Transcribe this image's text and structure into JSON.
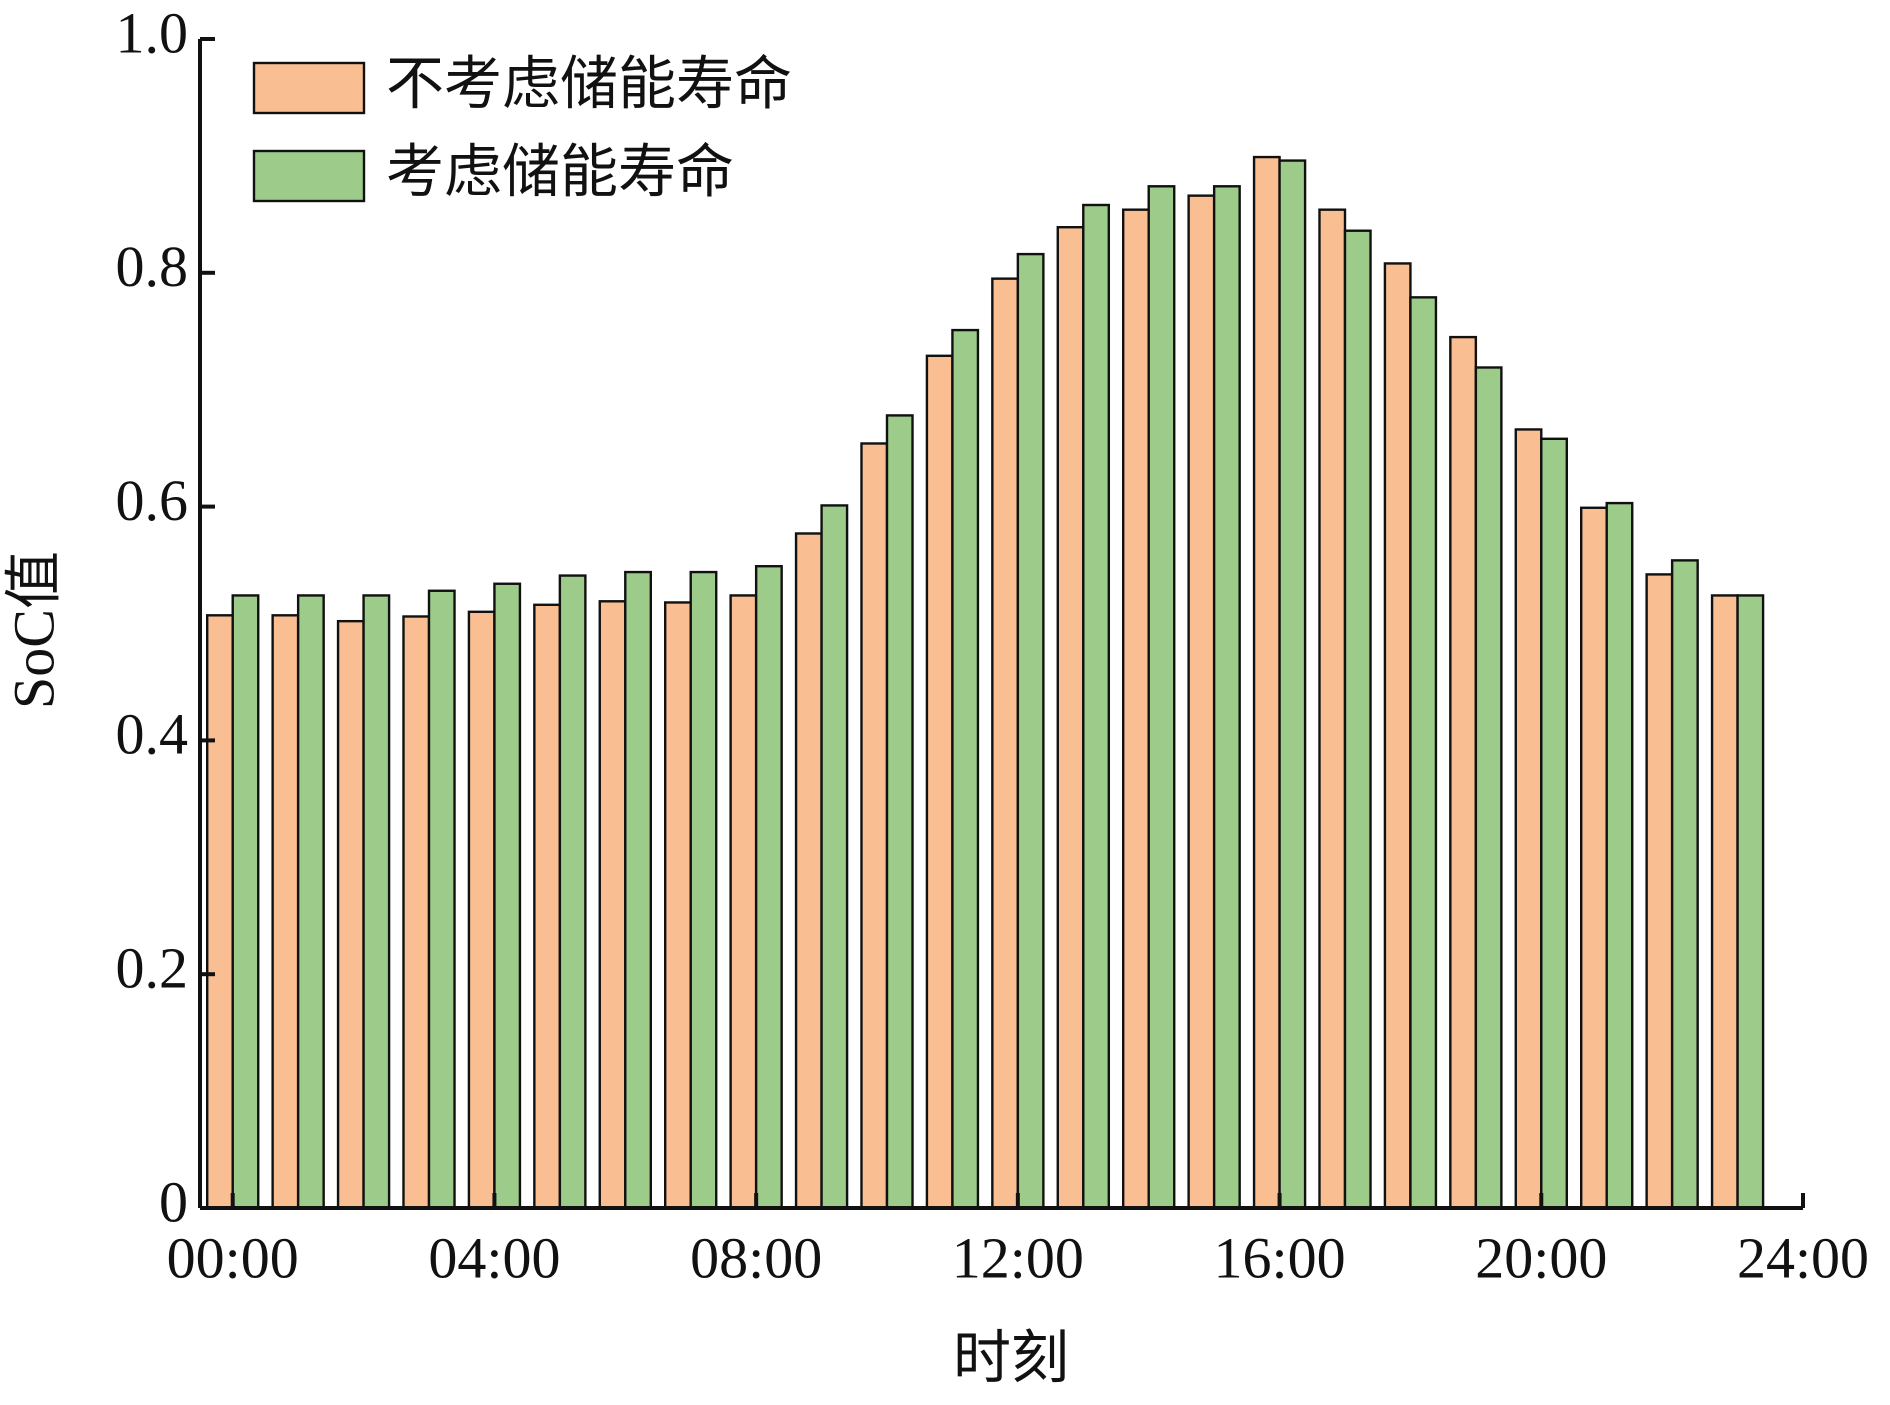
{
  "chart_data": {
    "type": "bar",
    "x": [
      0,
      1,
      2,
      3,
      4,
      5,
      6,
      7,
      8,
      9,
      10,
      11,
      12,
      13,
      14,
      15,
      16,
      17,
      18,
      19,
      20,
      21,
      22,
      23
    ],
    "series": [
      {
        "name": "不考虑储能寿命",
        "color": "#f9be92",
        "values": [
          0.507,
          0.507,
          0.502,
          0.506,
          0.51,
          0.516,
          0.519,
          0.518,
          0.524,
          0.577,
          0.654,
          0.729,
          0.795,
          0.839,
          0.854,
          0.866,
          0.899,
          0.854,
          0.808,
          0.745,
          0.666,
          0.599,
          0.542,
          0.524
        ]
      },
      {
        "name": "考虑储能寿命",
        "color": "#9dcb8a",
        "values": [
          0.524,
          0.524,
          0.524,
          0.528,
          0.534,
          0.541,
          0.544,
          0.544,
          0.549,
          0.601,
          0.678,
          0.751,
          0.816,
          0.858,
          0.874,
          0.874,
          0.896,
          0.836,
          0.779,
          0.719,
          0.658,
          0.603,
          0.554,
          0.524
        ]
      }
    ],
    "xlabel": "时刻",
    "ylabel": "SoC值",
    "xlim": [
      -0.5,
      24
    ],
    "xticks": [
      {
        "value": 0,
        "label": "00:00"
      },
      {
        "value": 4,
        "label": "04:00"
      },
      {
        "value": 8,
        "label": "08:00"
      },
      {
        "value": 12,
        "label": "12:00"
      },
      {
        "value": 16,
        "label": "16:00"
      },
      {
        "value": 20,
        "label": "20:00"
      },
      {
        "value": 24,
        "label": "24:00"
      }
    ],
    "ylim": [
      0,
      1
    ],
    "yticks": [
      0,
      0.2,
      0.4,
      0.6,
      0.8,
      {
        "value": 1,
        "label": "1.0"
      }
    ],
    "grid": false,
    "legend": "upper left"
  }
}
